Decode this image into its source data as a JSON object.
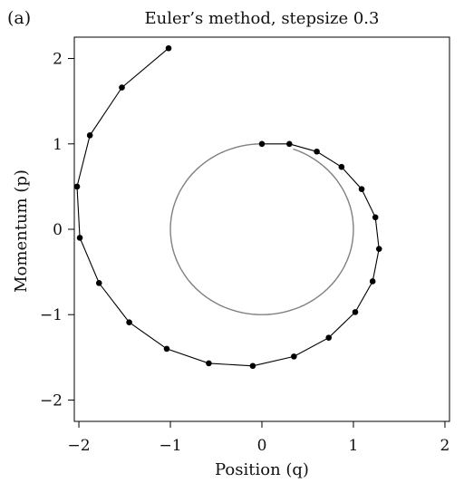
{
  "panel_label": "(a)",
  "chart_data": {
    "type": "scatter",
    "title": "Euler’s method, stepsize 0.3",
    "xlabel": "Position (q)",
    "ylabel": "Momentum (p)",
    "xlim": [
      -2.05,
      2.05
    ],
    "ylim": [
      -2.25,
      2.25
    ],
    "x_ticks": [
      -2,
      -1,
      0,
      1,
      2
    ],
    "y_ticks": [
      -2,
      -1,
      0,
      1,
      2
    ],
    "x_tick_labels": [
      "−2",
      "−1",
      "0",
      "1",
      "2"
    ],
    "y_tick_labels": [
      "−2",
      "−1",
      "0",
      "1",
      "2"
    ],
    "grid": false,
    "colors": {
      "series": "#000000",
      "circle": "#808080"
    },
    "series": [
      {
        "style": "line-markers",
        "x": [
          0.0,
          0.3,
          0.6,
          0.87,
          1.09,
          1.24,
          1.28,
          1.21,
          1.02,
          0.73,
          0.35,
          -0.1,
          -0.58,
          -1.04,
          -1.45,
          -1.78,
          -1.99,
          -2.02,
          -1.88,
          -1.53,
          -1.02
        ],
        "y": [
          1.0,
          1.0,
          0.91,
          0.73,
          0.47,
          0.14,
          -0.23,
          -0.61,
          -0.97,
          -1.27,
          -1.49,
          -1.6,
          -1.57,
          -1.4,
          -1.09,
          -0.63,
          -0.1,
          0.5,
          1.1,
          1.66,
          2.12
        ]
      },
      {
        "style": "line",
        "shape": "circle",
        "radius": 1,
        "arc_degrees": 340
      }
    ]
  }
}
